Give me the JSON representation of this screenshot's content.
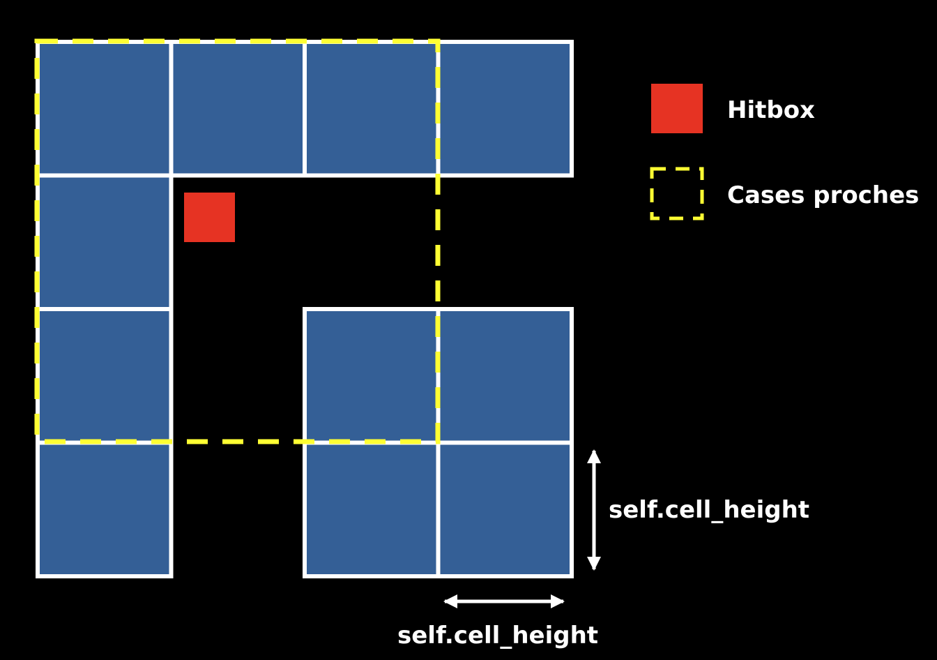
{
  "legend": {
    "hitbox_label": "Hitbox",
    "near_cells_label": "Cases proches"
  },
  "dimensions": {
    "vertical_label": "self.cell_height",
    "horizontal_label": "self.cell_height"
  },
  "grid": {
    "columns": 4,
    "rows": 4,
    "filled_cells": [
      [
        0,
        0
      ],
      [
        1,
        0
      ],
      [
        2,
        0
      ],
      [
        3,
        0
      ],
      [
        0,
        1
      ],
      [
        0,
        2
      ],
      [
        2,
        2
      ],
      [
        3,
        2
      ],
      [
        0,
        3
      ],
      [
        2,
        3
      ],
      [
        3,
        3
      ]
    ],
    "hitbox_cell": [
      1,
      1
    ],
    "near_cells_region": {
      "col_start": 0,
      "row_start": 0,
      "col_end": 2,
      "row_end": 2
    }
  },
  "colors": {
    "background": "#000000",
    "cell_fill": "#345f96",
    "cell_border": "#ffffff",
    "hitbox": "#e63323",
    "near_cells_outline": "#ffff33",
    "text": "#ffffff"
  }
}
